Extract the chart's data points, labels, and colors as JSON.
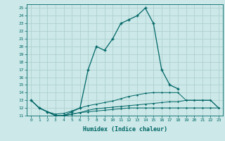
{
  "xlabel": "Humidex (Indice chaleur)",
  "ylabel": "",
  "background_color": "#cce8e8",
  "grid_color": "#aacccc",
  "line_color": "#006666",
  "xlim": [
    -0.5,
    23.5
  ],
  "ylim": [
    11,
    25.5
  ],
  "yticks": [
    11,
    12,
    13,
    14,
    15,
    16,
    17,
    18,
    19,
    20,
    21,
    22,
    23,
    24,
    25
  ],
  "xticks": [
    0,
    1,
    2,
    3,
    4,
    5,
    6,
    7,
    8,
    9,
    10,
    11,
    12,
    13,
    14,
    15,
    16,
    17,
    18,
    19,
    20,
    21,
    22,
    23
  ],
  "series": [
    {
      "x": [
        0,
        1,
        2,
        3,
        4,
        5,
        6,
        7,
        8,
        9,
        10,
        11,
        12,
        13,
        14,
        15,
        16,
        17,
        18
      ],
      "y": [
        13,
        12,
        11.5,
        11,
        11,
        11.5,
        12,
        17,
        20,
        19.5,
        21,
        23,
        23.5,
        24,
        25,
        23,
        17,
        15,
        14.5
      ]
    },
    {
      "x": [
        0,
        1,
        2,
        3,
        4,
        5,
        6,
        7,
        8,
        9,
        10,
        11,
        12,
        13,
        14,
        15,
        16,
        17,
        18,
        19,
        20,
        21,
        22,
        23
      ],
      "y": [
        13,
        12,
        11.5,
        11.2,
        11.3,
        11.6,
        12.0,
        12.3,
        12.5,
        12.7,
        12.9,
        13.2,
        13.5,
        13.7,
        13.9,
        14.0,
        14.0,
        14.0,
        14.0,
        13.0,
        13.0,
        13.0,
        13.0,
        12
      ]
    },
    {
      "x": [
        0,
        1,
        2,
        3,
        4,
        5,
        6,
        7,
        8,
        9,
        10,
        11,
        12,
        13,
        14,
        15,
        16,
        17,
        18,
        19,
        20,
        21,
        22,
        23
      ],
      "y": [
        13,
        12,
        11.5,
        11.0,
        11.0,
        11.2,
        11.4,
        11.7,
        11.9,
        12.0,
        12.1,
        12.2,
        12.3,
        12.4,
        12.5,
        12.6,
        12.7,
        12.8,
        12.8,
        13.0,
        13.0,
        13.0,
        13.0,
        12
      ]
    },
    {
      "x": [
        1,
        2,
        3,
        4,
        5,
        6,
        7,
        8,
        9,
        10,
        11,
        12,
        13,
        14,
        15,
        16,
        17,
        18,
        19,
        20,
        21,
        22,
        23
      ],
      "y": [
        12,
        11.5,
        11,
        11,
        11.2,
        11.4,
        11.5,
        11.6,
        11.7,
        11.8,
        11.9,
        12.0,
        12.0,
        12.0,
        12.0,
        12.0,
        12.0,
        12.0,
        12.0,
        12.0,
        12.0,
        12.0,
        12.0
      ]
    }
  ]
}
